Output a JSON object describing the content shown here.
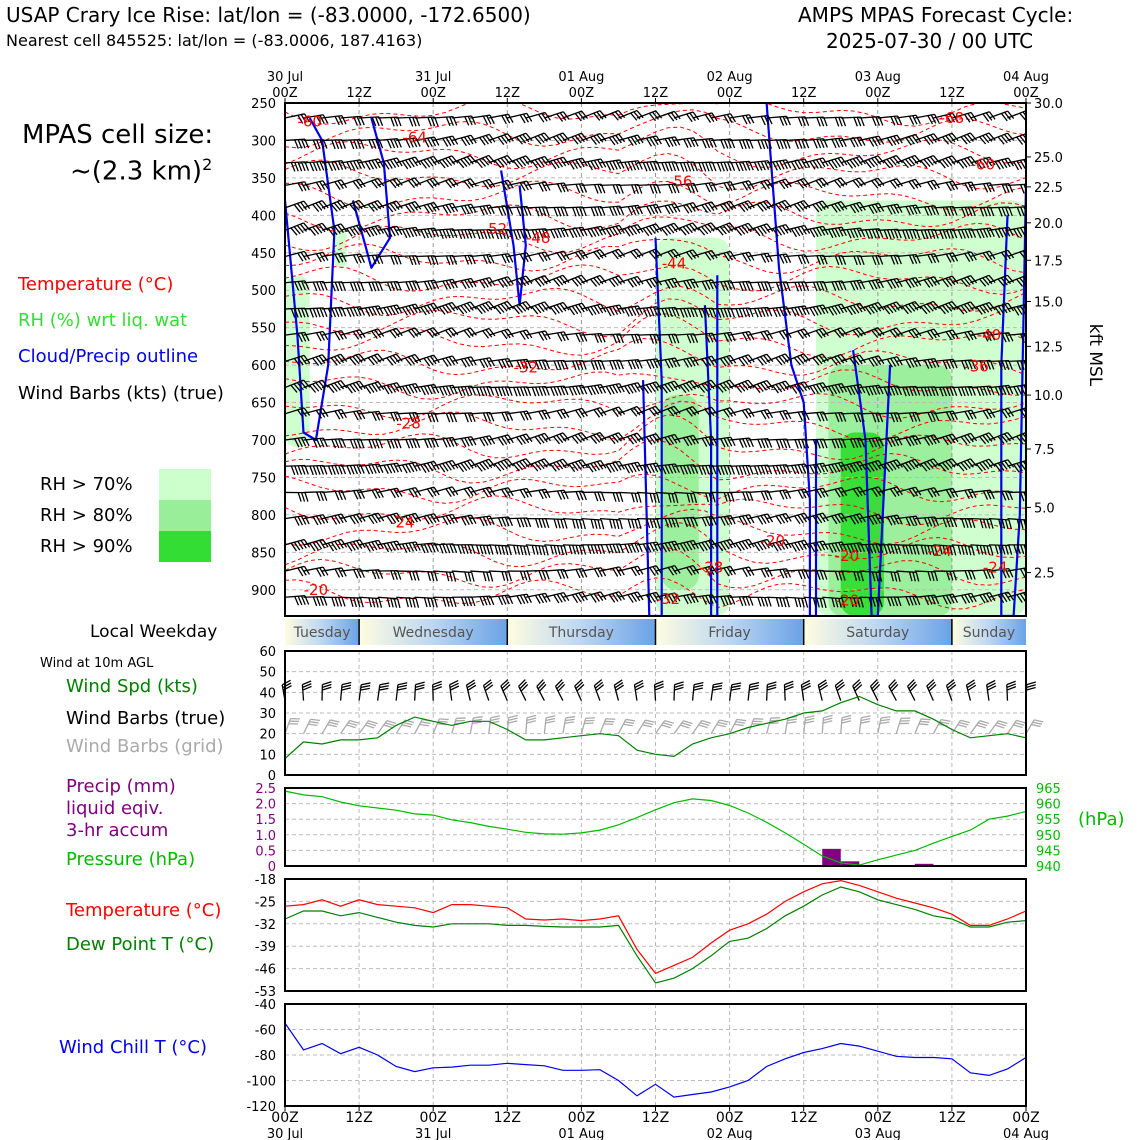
{
  "header": {
    "title_left": "USAP Crary Ice Rise: lat/lon = (-83.0000, -172.6500)",
    "subtitle_left": "Nearest cell 845525: lat/lon = (-83.0006, 187.4163)",
    "title_right_1": "AMPS MPAS Forecast Cycle:",
    "title_right_2": "2025-07-30 / 00 UTC"
  },
  "legend": {
    "cell_size_1": "MPAS cell size:",
    "cell_size_2": "~(2.3 km)",
    "cell_size_sup": "2",
    "temperature": "Temperature (°C)",
    "rh": "RH (%) wrt liq. wat",
    "cloud": "Cloud/Precip outline",
    "barbs": "Wind Barbs (kts) (true)",
    "rh70": "RH > 70%",
    "rh80": "RH > 80%",
    "rh90": "RH > 90%",
    "colors": {
      "rh70": "#ccffcc",
      "rh80": "#99ee99",
      "rh90": "#33dd33",
      "temp": "#ff0000",
      "cloud": "#0000ee"
    }
  },
  "time_axis": {
    "top_labels": [
      {
        "h": 0,
        "l1": "30 Jul",
        "l2": "00Z"
      },
      {
        "h": 12,
        "l1": "",
        "l2": "12Z"
      },
      {
        "h": 24,
        "l1": "31 Jul",
        "l2": "00Z"
      },
      {
        "h": 36,
        "l1": "",
        "l2": "12Z"
      },
      {
        "h": 48,
        "l1": "01 Aug",
        "l2": "00Z"
      },
      {
        "h": 60,
        "l1": "",
        "l2": "12Z"
      },
      {
        "h": 72,
        "l1": "02 Aug",
        "l2": "00Z"
      },
      {
        "h": 84,
        "l1": "",
        "l2": "12Z"
      },
      {
        "h": 96,
        "l1": "03 Aug",
        "l2": "00Z"
      },
      {
        "h": 108,
        "l1": "",
        "l2": "12Z"
      },
      {
        "h": 120,
        "l1": "04 Aug",
        "l2": "00Z"
      }
    ],
    "bottom_labels": [
      {
        "h": 0,
        "l1": "00Z",
        "l2": "30 Jul"
      },
      {
        "h": 12,
        "l1": "12Z",
        "l2": ""
      },
      {
        "h": 24,
        "l1": "00Z",
        "l2": "31 Jul"
      },
      {
        "h": 36,
        "l1": "12Z",
        "l2": ""
      },
      {
        "h": 48,
        "l1": "00Z",
        "l2": "01 Aug"
      },
      {
        "h": 60,
        "l1": "12Z",
        "l2": ""
      },
      {
        "h": 72,
        "l1": "00Z",
        "l2": "02 Aug"
      },
      {
        "h": 84,
        "l1": "12Z",
        "l2": ""
      },
      {
        "h": 96,
        "l1": "00Z",
        "l2": "03 Aug"
      },
      {
        "h": 108,
        "l1": "12Z",
        "l2": ""
      },
      {
        "h": 120,
        "l1": "00Z",
        "l2": "04 Aug"
      }
    ]
  },
  "weekday": {
    "label": "Local Weekday",
    "days": [
      {
        "name": "Tuesday",
        "start": -12,
        "end": 12
      },
      {
        "name": "Wednesday",
        "start": 12,
        "end": 36
      },
      {
        "name": "Thursday",
        "start": 36,
        "end": 60
      },
      {
        "name": "Friday",
        "start": 60,
        "end": 84
      },
      {
        "name": "Saturday",
        "start": 84,
        "end": 108
      },
      {
        "name": "Sunday",
        "start": 108,
        "end": 132
      }
    ]
  },
  "chart_data": [
    {
      "type": "heatmap",
      "name": "time-height cross section",
      "x_unit": "forecast hour",
      "xlim": [
        0,
        120
      ],
      "y_left_unit": "hPa",
      "ylim_left": [
        250,
        935
      ],
      "y_left_ticks": [
        250,
        300,
        350,
        400,
        450,
        500,
        550,
        600,
        650,
        700,
        750,
        800,
        850,
        900
      ],
      "y_right_label": "kft MSL",
      "y_right_ticks": [
        {
          "p": 250,
          "label": "30.0"
        },
        {
          "p": 322,
          "label": "25.0"
        },
        {
          "p": 362,
          "label": "22.5"
        },
        {
          "p": 410,
          "label": "20.0"
        },
        {
          "p": 460,
          "label": "17.5"
        },
        {
          "p": 515,
          "label": "15.0"
        },
        {
          "p": 575,
          "label": "12.5"
        },
        {
          "p": 640,
          "label": "10.0"
        },
        {
          "p": 712,
          "label": "7.5"
        },
        {
          "p": 790,
          "label": "5.0"
        },
        {
          "p": 877,
          "label": "2.5"
        }
      ],
      "temperature_labels": [
        {
          "h": 4,
          "p": 275,
          "t": "-60"
        },
        {
          "h": 21,
          "p": 296,
          "t": "-64"
        },
        {
          "h": 108,
          "p": 270,
          "t": "-68"
        },
        {
          "h": 113,
          "p": 332,
          "t": "-60"
        },
        {
          "h": 64,
          "p": 355,
          "t": "-56"
        },
        {
          "h": 34,
          "p": 418,
          "t": "-52"
        },
        {
          "h": 41,
          "p": 430,
          "t": "-48"
        },
        {
          "h": 63,
          "p": 464,
          "t": "-44"
        },
        {
          "h": 114,
          "p": 560,
          "t": "-40"
        },
        {
          "h": 112,
          "p": 602,
          "t": "-36"
        },
        {
          "h": 39,
          "p": 603,
          "t": "-32"
        },
        {
          "h": 20,
          "p": 678,
          "t": "-28"
        },
        {
          "h": 19,
          "p": 810,
          "t": "-24"
        },
        {
          "h": 79,
          "p": 835,
          "t": "-20"
        },
        {
          "h": 91,
          "p": 855,
          "t": "-20"
        },
        {
          "h": 106,
          "p": 848,
          "t": "-24"
        },
        {
          "h": 115,
          "p": 870,
          "t": "-24"
        },
        {
          "h": 69,
          "p": 870,
          "t": "-28"
        },
        {
          "h": 62,
          "p": 912,
          "t": "-32"
        },
        {
          "h": 5,
          "p": 900,
          "t": "-20"
        },
        {
          "h": 91,
          "p": 914,
          "t": "-20"
        }
      ],
      "rh_regions": [
        {
          "level": 70,
          "h0": 0,
          "h1": 4,
          "p0": 480,
          "p1": 710
        },
        {
          "level": 70,
          "h0": 8,
          "h1": 10,
          "p0": 420,
          "p1": 470
        },
        {
          "level": 70,
          "h0": 60,
          "h1": 72,
          "p0": 430,
          "p1": 935
        },
        {
          "level": 80,
          "h0": 61,
          "h1": 67,
          "p0": 640,
          "p1": 900
        },
        {
          "level": 70,
          "h0": 86,
          "h1": 120,
          "p0": 380,
          "p1": 935
        },
        {
          "level": 80,
          "h0": 88,
          "h1": 108,
          "p0": 600,
          "p1": 935
        },
        {
          "level": 90,
          "h0": 90,
          "h1": 97,
          "p0": 690,
          "p1": 935
        }
      ],
      "cloud_outlines": [
        [
          [
            0,
            380
          ],
          [
            2,
            560
          ],
          [
            3,
            690
          ],
          [
            5,
            700
          ],
          [
            7,
            600
          ],
          [
            8,
            420
          ],
          [
            6,
            300
          ],
          [
            4,
            270
          ]
        ],
        [
          [
            11,
            380
          ],
          [
            13,
            440
          ],
          [
            14,
            470
          ],
          [
            17,
            430
          ],
          [
            16,
            330
          ],
          [
            14,
            270
          ]
        ],
        [
          [
            35,
            340
          ],
          [
            37,
            440
          ],
          [
            38,
            520
          ],
          [
            39,
            440
          ],
          [
            38,
            360
          ]
        ],
        [
          [
            58,
            620
          ],
          [
            59,
            935
          ],
          [
            61,
            935
          ],
          [
            61,
            620
          ],
          [
            60,
            430
          ]
        ],
        [
          [
            68,
            520
          ],
          [
            69,
            700
          ],
          [
            69,
            935
          ],
          [
            70,
            935
          ],
          [
            70,
            620
          ],
          [
            70,
            480
          ]
        ],
        [
          [
            78,
            250
          ],
          [
            80,
            470
          ],
          [
            82,
            600
          ],
          [
            84,
            650
          ],
          [
            85,
            780
          ],
          [
            85,
            935
          ],
          [
            86,
            935
          ],
          [
            86,
            700
          ]
        ],
        [
          [
            92,
            580
          ],
          [
            94,
            700
          ],
          [
            95,
            935
          ],
          [
            96,
            935
          ],
          [
            98,
            600
          ]
        ],
        [
          [
            117,
            400
          ],
          [
            116,
            600
          ],
          [
            116,
            935
          ],
          [
            118,
            935
          ],
          [
            119,
            800
          ],
          [
            120,
            360
          ]
        ]
      ],
      "wind_rows_p": [
        270,
        300,
        330,
        360,
        390,
        420,
        455,
        490,
        525,
        560,
        595,
        630,
        665,
        700,
        735,
        770,
        805,
        840,
        875,
        910
      ]
    },
    {
      "type": "line",
      "name": "10 m wind",
      "title": "Wind at 10m AGL",
      "ylabel": "Wind Spd (kts)",
      "barbs_true_label": "Wind Barbs (true)",
      "barbs_grid_label": "Wind Barbs (grid)",
      "ylim": [
        0,
        60
      ],
      "y_ticks": [
        0,
        10,
        20,
        30,
        40,
        50,
        60
      ],
      "x": [
        0,
        3,
        6,
        9,
        12,
        15,
        18,
        21,
        24,
        27,
        30,
        33,
        36,
        39,
        42,
        45,
        48,
        51,
        54,
        57,
        60,
        63,
        66,
        69,
        72,
        75,
        78,
        81,
        84,
        87,
        90,
        93,
        96,
        99,
        102,
        105,
        108,
        111,
        114,
        117,
        120
      ],
      "series": [
        {
          "name": "Wind Spd",
          "color": "#008000",
          "values": [
            8,
            16,
            15,
            17,
            17,
            18,
            24,
            28,
            26,
            24,
            26,
            26,
            22,
            17,
            17,
            18,
            19,
            20,
            19,
            12,
            10,
            9,
            15,
            18,
            20,
            23,
            25,
            27,
            30,
            31,
            35,
            38,
            34,
            31,
            31,
            27,
            22,
            18,
            19,
            20,
            18
          ]
        }
      ]
    },
    {
      "type": "line",
      "name": "precipitation and pressure",
      "ylabel": "Precip (mm)",
      "ylabel_line2": "liquid eqiv.",
      "ylabel_line3": "3-hr accum",
      "y2label": "Pressure (hPa)",
      "y2unit": "(hPa)",
      "ylim": [
        0,
        2.5
      ],
      "y_ticks": [
        0,
        0.5,
        1.0,
        1.5,
        2.0,
        2.5
      ],
      "y_tick_labels": [
        "0",
        "0.5",
        "1.0",
        "1.5",
        "2.0",
        "2.5"
      ],
      "y2lim": [
        940,
        965
      ],
      "y2_ticks": [
        940,
        945,
        950,
        955,
        960,
        965
      ],
      "x": [
        0,
        3,
        6,
        9,
        12,
        15,
        18,
        21,
        24,
        27,
        30,
        33,
        36,
        39,
        42,
        45,
        48,
        51,
        54,
        57,
        60,
        63,
        66,
        69,
        72,
        75,
        78,
        81,
        84,
        87,
        90,
        93,
        96,
        99,
        102,
        105,
        108,
        111,
        114,
        117,
        120
      ],
      "series": [
        {
          "name": "Pressure",
          "color": "#00bb00",
          "values": [
            964,
            962.8,
            962.2,
            960.5,
            959.3,
            958.6,
            957.9,
            956.7,
            956.3,
            954.8,
            953.9,
            952.7,
            951.8,
            950.8,
            950.3,
            950.2,
            950.6,
            951.5,
            953.2,
            955.5,
            958,
            960.3,
            961.5,
            961,
            959.4,
            957,
            954,
            950.6,
            947,
            943.2,
            941,
            940.3,
            942,
            943.5,
            945,
            947.3,
            949.5,
            951.5,
            955,
            956,
            957.5
          ]
        },
        {
          "name": "Precip",
          "color": "#800080",
          "type": "bar",
          "bars": [
            {
              "h": 88.5,
              "v": 0.55
            },
            {
              "h": 91.5,
              "v": 0.15
            },
            {
              "h": 103.5,
              "v": 0.07
            }
          ]
        }
      ]
    },
    {
      "type": "line",
      "name": "temperature and dew point",
      "ylim": [
        -53,
        -18
      ],
      "y_ticks": [
        -18,
        -25,
        -32,
        -39,
        -46,
        -53
      ],
      "x": [
        0,
        3,
        6,
        9,
        12,
        15,
        18,
        21,
        24,
        27,
        30,
        33,
        36,
        39,
        42,
        45,
        48,
        51,
        54,
        57,
        60,
        63,
        66,
        69,
        72,
        75,
        78,
        81,
        84,
        87,
        90,
        93,
        96,
        99,
        102,
        105,
        108,
        111,
        114,
        117,
        120
      ],
      "series": [
        {
          "name": "Temperature (°C)",
          "color": "#ff0000",
          "values": [
            -26.5,
            -26,
            -24.5,
            -26.5,
            -24.5,
            -26,
            -26.5,
            -27,
            -28.5,
            -26,
            -26,
            -26.5,
            -27,
            -30.5,
            -30.8,
            -30.5,
            -31,
            -30.5,
            -29.5,
            -40,
            -47.5,
            -45,
            -42.5,
            -38,
            -34,
            -32,
            -29,
            -25,
            -22,
            -19.5,
            -18.5,
            -20,
            -22,
            -24,
            -25.5,
            -27,
            -29,
            -32.5,
            -32.5,
            -30.5,
            -28
          ]
        },
        {
          "name": "Dew Point T (°C)",
          "color": "#008000",
          "values": [
            -30.5,
            -28,
            -28,
            -29.5,
            -28.5,
            -30,
            -31.5,
            -32.5,
            -33,
            -32,
            -32,
            -32,
            -32.5,
            -32.5,
            -32.8,
            -33,
            -33,
            -33,
            -32.5,
            -42,
            -50.5,
            -49,
            -46,
            -42,
            -37.5,
            -36.5,
            -33.5,
            -29.5,
            -26.5,
            -23,
            -20.5,
            -22,
            -24.5,
            -26,
            -27.5,
            -29.5,
            -30.5,
            -33,
            -33,
            -31.5,
            -31
          ]
        }
      ]
    },
    {
      "type": "line",
      "name": "wind chill",
      "ylabel": "Wind Chill T (°C)",
      "ylim": [
        -120,
        -40
      ],
      "y_ticks": [
        -40,
        -60,
        -80,
        -100,
        -120
      ],
      "x": [
        0,
        3,
        6,
        9,
        12,
        15,
        18,
        21,
        24,
        27,
        30,
        33,
        36,
        39,
        42,
        45,
        48,
        51,
        54,
        57,
        60,
        63,
        66,
        69,
        72,
        75,
        78,
        81,
        84,
        87,
        90,
        93,
        96,
        99,
        102,
        105,
        108,
        111,
        114,
        117,
        120
      ],
      "series": [
        {
          "name": "Wind Chill T",
          "color": "#0000ee",
          "values": [
            -55,
            -76,
            -71,
            -79,
            -74,
            -80,
            -89,
            -93,
            -90,
            -89.5,
            -88,
            -88,
            -86.5,
            -87.5,
            -88.5,
            -92,
            -92,
            -91.5,
            -100,
            -112,
            -103,
            -113,
            -111,
            -109,
            -105,
            -100,
            -89,
            -83,
            -78,
            -75,
            -71,
            -73,
            -77,
            -81,
            -82,
            -82,
            -83,
            -94,
            -96,
            -91,
            -82
          ]
        }
      ]
    }
  ]
}
